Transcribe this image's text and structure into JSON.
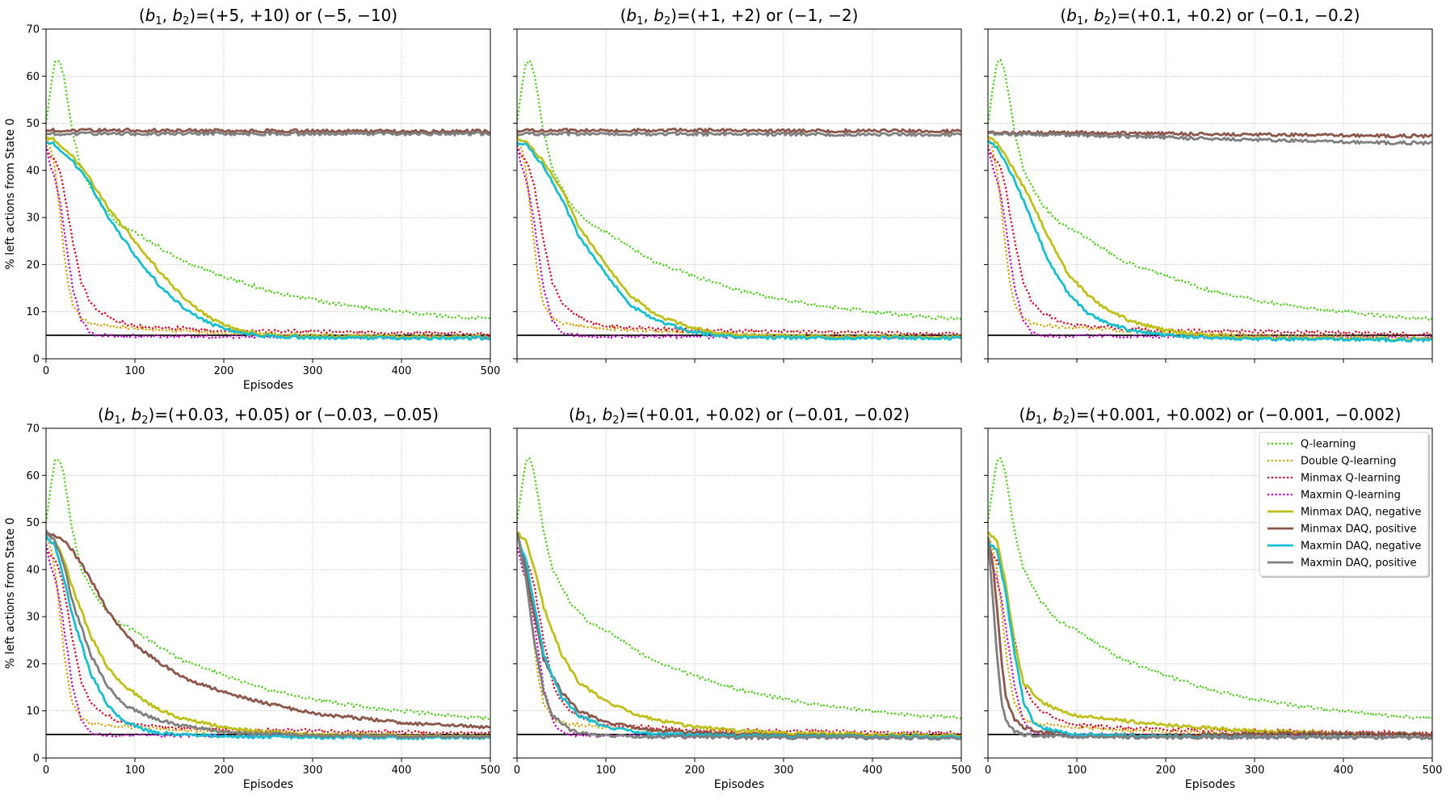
{
  "chart_data": {
    "type": "line",
    "figure": "Percentage of left actions from State 0 over episodes",
    "xlabel": "Episodes",
    "ylabel": "% left actions from State 0",
    "xlim": [
      0,
      500
    ],
    "ylim": [
      0,
      70
    ],
    "xticks": [
      0,
      100,
      200,
      300,
      400,
      500
    ],
    "yticks": [
      0,
      10,
      20,
      30,
      40,
      50,
      60,
      70
    ],
    "reference_line": {
      "y": 5,
      "color": "#000000"
    },
    "legend": {
      "placement": "top-right",
      "entries": [
        {
          "name": "Q-learning",
          "color": "#4dcc1a",
          "style": "dotted"
        },
        {
          "name": "Double Q-learning",
          "color": "#d2a000",
          "style": "dotted"
        },
        {
          "name": "Minmax Q-learning",
          "color": "#d6001e",
          "style": "dotted"
        },
        {
          "name": "Maxmin Q-learning",
          "color": "#c000c0",
          "style": "dotted"
        },
        {
          "name": "Minmax DAQ, negative",
          "color": "#bfbf1a",
          "style": "solid"
        },
        {
          "name": "Minmax DAQ, positive",
          "color": "#8c564b",
          "style": "solid"
        },
        {
          "name": "Maxmin DAQ, negative",
          "color": "#17becf",
          "style": "solid"
        },
        {
          "name": "Maxmin DAQ, positive",
          "color": "#7f7f7f",
          "style": "solid"
        }
      ]
    },
    "baselines": {
      "Q-learning": {
        "x": [
          0,
          5,
          10,
          15,
          20,
          30,
          40,
          60,
          80,
          100,
          150,
          200,
          250,
          300,
          350,
          400,
          450,
          500
        ],
        "y": [
          50,
          57,
          63,
          63.5,
          60,
          48,
          40,
          33,
          29,
          27,
          21,
          17.5,
          14.5,
          12.5,
          11,
          10,
          9,
          8.5
        ]
      },
      "Double Q-learning": {
        "x": [
          0,
          5,
          10,
          15,
          20,
          25,
          30,
          40,
          50,
          70,
          100,
          150,
          200,
          300,
          400,
          500
        ],
        "y": [
          47,
          45,
          40,
          32,
          23,
          16,
          11.5,
          8.5,
          7.5,
          7,
          6.5,
          6,
          5.5,
          5,
          4.8,
          4.6
        ]
      },
      "Minmax Q-learning": {
        "x": [
          0,
          5,
          10,
          15,
          20,
          30,
          40,
          50,
          60,
          80,
          100,
          150,
          200,
          300,
          400,
          500
        ],
        "y": [
          45,
          43,
          42,
          40,
          36,
          25,
          16,
          12,
          10,
          8,
          7,
          6.5,
          6,
          5.8,
          5.5,
          5.3
        ]
      },
      "Maxmin Q-learning": {
        "x": [
          0,
          5,
          10,
          15,
          20,
          30,
          40,
          50,
          60,
          80,
          100,
          150,
          200,
          300,
          400,
          500
        ],
        "y": [
          45,
          41,
          38,
          34,
          28,
          15,
          8,
          5.5,
          5,
          4.8,
          4.8,
          4.8,
          4.7,
          4.7,
          4.6,
          4.6
        ]
      }
    },
    "series_names": [
      "Minmax DAQ, negative",
      "Minmax DAQ, positive",
      "Maxmin DAQ, negative",
      "Maxmin DAQ, positive"
    ],
    "panels": [
      {
        "title": "(b1, b2)=(+5, +10) or (−5, −10)",
        "daq": {
          "Minmax DAQ, negative": {
            "x": [
              0,
              10,
              30,
              50,
              70,
              100,
              130,
              160,
              190,
              220,
              250,
              300,
              400,
              500
            ],
            "y": [
              47,
              46.5,
              43,
              38,
              32,
              25,
              18,
              12,
              8,
              6,
              5,
              4.8,
              4.7,
              4.6
            ]
          },
          "Minmax DAQ, positive": {
            "x": [
              0,
              100,
              200,
              300,
              400,
              500
            ],
            "y": [
              48.5,
              48.5,
              48.4,
              48.4,
              48.3,
              48.3
            ]
          },
          "Maxmin DAQ, negative": {
            "x": [
              0,
              10,
              30,
              50,
              70,
              100,
              130,
              160,
              190,
              220,
              250,
              300,
              400,
              500
            ],
            "y": [
              46,
              45.5,
              42,
              37,
              30,
              22,
              15,
              10,
              7,
              5.5,
              4.8,
              4.5,
              4.4,
              4.4
            ]
          },
          "Maxmin DAQ, positive": {
            "x": [
              0,
              100,
              200,
              300,
              400,
              500
            ],
            "y": [
              47.8,
              47.8,
              47.8,
              47.8,
              47.8,
              47.8
            ]
          }
        }
      },
      {
        "title": "(b1, b2)=(+1, +2) or (−1, −2)",
        "daq": {
          "Minmax DAQ, negative": {
            "x": [
              0,
              10,
              30,
              50,
              70,
              100,
              130,
              160,
              190,
              220,
              250,
              300,
              400,
              500
            ],
            "y": [
              47,
              46,
              42,
              36,
              28,
              20,
              13,
              9,
              7,
              5.5,
              5,
              4.8,
              4.7,
              4.6
            ]
          },
          "Minmax DAQ, positive": {
            "x": [
              0,
              100,
              200,
              300,
              400,
              500
            ],
            "y": [
              48.5,
              48.5,
              48.5,
              48.4,
              48.4,
              48.3
            ]
          },
          "Maxmin DAQ, negative": {
            "x": [
              0,
              10,
              30,
              50,
              70,
              100,
              130,
              160,
              190,
              220,
              250,
              300,
              400,
              500
            ],
            "y": [
              46,
              45.5,
              41,
              34,
              26,
              18,
              11,
              8,
              6,
              5,
              4.6,
              4.5,
              4.4,
              4.4
            ]
          },
          "Maxmin DAQ, positive": {
            "x": [
              0,
              100,
              200,
              300,
              400,
              500
            ],
            "y": [
              47.8,
              47.8,
              47.7,
              47.7,
              47.6,
              47.6
            ]
          }
        }
      },
      {
        "title": "(b1, b2)=(+0.1, +0.2) or (−0.1, −0.2)",
        "daq": {
          "Minmax DAQ, negative": {
            "x": [
              0,
              10,
              30,
              50,
              70,
              90,
              110,
              130,
              160,
              200,
              250,
              300,
              400,
              500
            ],
            "y": [
              47,
              46,
              40,
              33,
              25,
              18,
              14,
              11,
              8,
              6,
              5,
              4.5,
              4.3,
              4.2
            ]
          },
          "Minmax DAQ, positive": {
            "x": [
              0,
              100,
              200,
              300,
              400,
              500
            ],
            "y": [
              48,
              48,
              47.8,
              47.6,
              47.4,
              47.3
            ]
          },
          "Maxmin DAQ, negative": {
            "x": [
              0,
              10,
              30,
              50,
              70,
              90,
              110,
              130,
              160,
              200,
              250,
              300,
              400,
              500
            ],
            "y": [
              46,
              45,
              38,
              29,
              20,
              14,
              10,
              8,
              6,
              5,
              4.5,
              4.2,
              4.1,
              4.0
            ]
          },
          "Maxmin DAQ, positive": {
            "x": [
              0,
              100,
              200,
              300,
              400,
              500
            ],
            "y": [
              47.8,
              47.5,
              47,
              46.5,
              46,
              45.8
            ]
          }
        }
      },
      {
        "title": "(b1, b2)=(+0.03, +0.05) or (−0.03, −0.05)",
        "daq": {
          "Minmax DAQ, negative": {
            "x": [
              0,
              10,
              20,
              30,
              50,
              70,
              90,
              120,
              150,
              200,
              250,
              300,
              400,
              500
            ],
            "y": [
              48,
              46,
              42,
              36,
              26,
              19,
              15,
              11,
              8.5,
              6.5,
              5.5,
              5,
              4.8,
              4.6
            ]
          },
          "Minmax DAQ, positive": {
            "x": [
              0,
              10,
              20,
              30,
              50,
              70,
              100,
              130,
              160,
              200,
              250,
              300,
              350,
              400,
              450,
              500
            ],
            "y": [
              48,
              47,
              46,
              44,
              38,
              31,
              24,
              20,
              16.5,
              14,
              11.5,
              9.5,
              8.5,
              7.5,
              7,
              6.5
            ]
          },
          "Maxmin DAQ, negative": {
            "x": [
              0,
              10,
              20,
              30,
              50,
              70,
              90,
              120,
              150,
              200,
              300,
              400,
              500
            ],
            "y": [
              47,
              45,
              38,
              30,
              18,
              11,
              7.5,
              5.5,
              5,
              4.6,
              4.4,
              4.3,
              4.3
            ]
          },
          "Maxmin DAQ, positive": {
            "x": [
              0,
              10,
              20,
              30,
              50,
              70,
              90,
              120,
              150,
              200,
              300,
              400,
              500
            ],
            "y": [
              48,
              46,
              41,
              33,
              22,
              15,
              11,
              8.5,
              7,
              5.5,
              4.8,
              4.6,
              4.5
            ]
          }
        }
      },
      {
        "title": "(b1, b2)=(+0.01, +0.02) or (−0.01, −0.02)",
        "daq": {
          "Minmax DAQ, negative": {
            "x": [
              0,
              10,
              20,
              30,
              50,
              70,
              100,
              130,
              160,
              200,
              250,
              300,
              400,
              500
            ],
            "y": [
              48,
              46,
              40,
              32,
              22,
              16,
              12,
              9.5,
              8,
              6.5,
              5.8,
              5.3,
              5,
              4.8
            ]
          },
          "Minmax DAQ, positive": {
            "x": [
              0,
              10,
              20,
              30,
              50,
              70,
              100,
              150,
              200,
              300,
              400,
              500
            ],
            "y": [
              48,
              40,
              30,
              21,
              14,
              10,
              7.5,
              6,
              5.3,
              4.8,
              4.6,
              4.5
            ]
          },
          "Maxmin DAQ, negative": {
            "x": [
              0,
              10,
              20,
              30,
              50,
              70,
              100,
              150,
              200,
              300,
              400,
              500
            ],
            "y": [
              47,
              42,
              32,
              22,
              13,
              9,
              6.5,
              5.2,
              4.8,
              4.6,
              4.5,
              4.5
            ]
          },
          "Maxmin DAQ, positive": {
            "x": [
              0,
              10,
              20,
              30,
              40,
              60,
              80,
              100,
              150,
              200,
              300,
              400,
              500
            ],
            "y": [
              48,
              38,
              24,
              14,
              9,
              6,
              5,
              4.7,
              4.5,
              4.4,
              4.3,
              4.3,
              4.2
            ]
          }
        }
      },
      {
        "title": "(b1, b2)=(+0.001, +0.002) or (−0.001, −0.002)",
        "daq": {
          "Minmax DAQ, negative": {
            "x": [
              0,
              10,
              20,
              30,
              40,
              60,
              80,
              100,
              150,
              200,
              300,
              400,
              500
            ],
            "y": [
              48,
              46,
              37,
              24,
              16,
              12,
              10,
              9,
              8,
              7,
              5.8,
              5.2,
              5
            ]
          },
          "Minmax DAQ, positive": {
            "x": [
              0,
              5,
              10,
              15,
              20,
              30,
              40,
              60,
              100,
              200,
              300,
              400,
              500
            ],
            "y": [
              47,
              42,
              32,
              21,
              13,
              8,
              6.5,
              5.5,
              5,
              4.8,
              5.2,
              5.2,
              5
            ]
          },
          "Maxmin DAQ, negative": {
            "x": [
              0,
              10,
              20,
              30,
              40,
              50,
              60,
              80,
              100,
              200,
              300,
              400,
              500
            ],
            "y": [
              46,
              44,
              35,
              22,
              12,
              8,
              6.5,
              5.5,
              5,
              4.6,
              4.5,
              4.4,
              4.3
            ]
          },
          "Maxmin DAQ, positive": {
            "x": [
              0,
              5,
              10,
              15,
              20,
              30,
              40,
              60,
              100,
              200,
              300,
              400,
              500
            ],
            "y": [
              47,
              35,
              22,
              12,
              8,
              5.5,
              5,
              4.7,
              4.5,
              4.4,
              4.4,
              4.3,
              4.3
            ]
          }
        }
      }
    ]
  }
}
